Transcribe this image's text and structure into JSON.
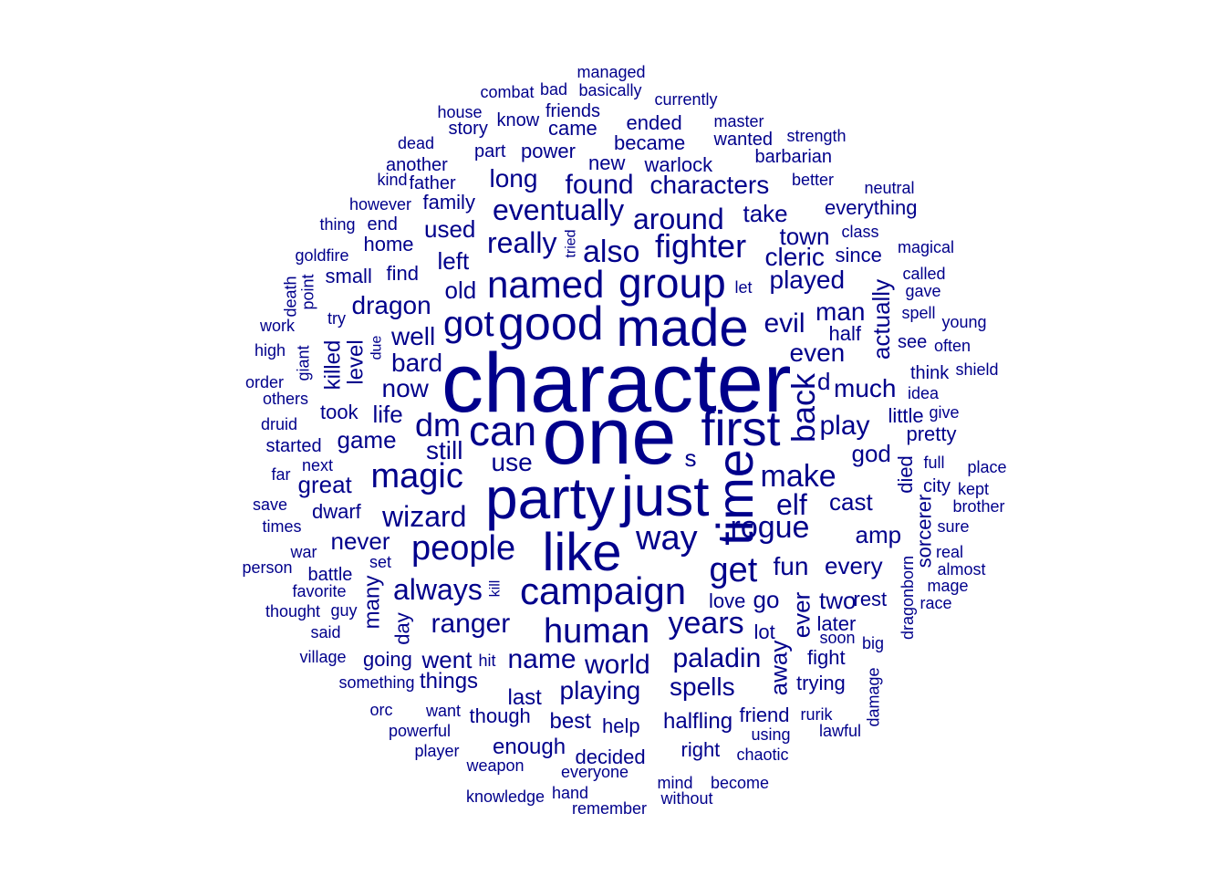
{
  "color": "#00008b",
  "words": [
    {
      "text": "character",
      "w": 92,
      "r": false
    },
    {
      "text": "one",
      "w": 88,
      "r": false
    },
    {
      "text": "party",
      "w": 64,
      "r": false
    },
    {
      "text": "just",
      "w": 62,
      "r": false
    },
    {
      "text": "made",
      "w": 58,
      "r": false
    },
    {
      "text": "like",
      "w": 58,
      "r": false
    },
    {
      "text": "time",
      "w": 56,
      "r": true
    },
    {
      "text": "first",
      "w": 54,
      "r": false
    },
    {
      "text": "good",
      "w": 52,
      "r": false
    },
    {
      "text": "can",
      "w": 46,
      "r": false
    },
    {
      "text": "group",
      "w": 46,
      "r": false
    },
    {
      "text": "named",
      "w": 42,
      "r": false
    },
    {
      "text": "campaign",
      "w": 42,
      "r": false
    },
    {
      "text": "got",
      "w": 40,
      "r": false
    },
    {
      "text": "magic",
      "w": 38,
      "r": false
    },
    {
      "text": "human",
      "w": 38,
      "r": false
    },
    {
      "text": "people",
      "w": 38,
      "r": false
    },
    {
      "text": "get",
      "w": 38,
      "r": false
    },
    {
      "text": "way",
      "w": 38,
      "r": false
    },
    {
      "text": "fighter",
      "w": 36,
      "r": false
    },
    {
      "text": "dm",
      "w": 36,
      "r": false
    },
    {
      "text": "back",
      "w": 36,
      "r": true
    },
    {
      "text": "make",
      "w": 34,
      "r": false
    },
    {
      "text": "rogue",
      "w": 34,
      "r": false
    },
    {
      "text": "also",
      "w": 34,
      "r": false
    },
    {
      "text": "years",
      "w": 34,
      "r": false
    },
    {
      "text": "eventually",
      "w": 32,
      "r": false
    },
    {
      "text": "really",
      "w": 32,
      "r": false
    },
    {
      "text": "around",
      "w": 32,
      "r": false
    },
    {
      "text": "wizard",
      "w": 32,
      "r": false
    },
    {
      "text": "always",
      "w": 32,
      "r": false
    },
    {
      "text": "elf",
      "w": 32,
      "r": false
    },
    {
      "text": "paladin",
      "w": 30,
      "r": false
    },
    {
      "text": "name",
      "w": 30,
      "r": false
    },
    {
      "text": "world",
      "w": 30,
      "r": false
    },
    {
      "text": "evil",
      "w": 30,
      "r": false
    },
    {
      "text": "ranger",
      "w": 30,
      "r": false
    },
    {
      "text": "play",
      "w": 30,
      "r": false
    },
    {
      "text": "found",
      "w": 30,
      "r": false
    },
    {
      "text": "characters",
      "w": 28,
      "r": false
    },
    {
      "text": "long",
      "w": 28,
      "r": false
    },
    {
      "text": "played",
      "w": 28,
      "r": false
    },
    {
      "text": "cleric",
      "w": 28,
      "r": false
    },
    {
      "text": "man",
      "w": 28,
      "r": false
    },
    {
      "text": "even",
      "w": 28,
      "r": false
    },
    {
      "text": "well",
      "w": 28,
      "r": false
    },
    {
      "text": "bard",
      "w": 28,
      "r": false
    },
    {
      "text": "now",
      "w": 28,
      "r": false
    },
    {
      "text": "dragon",
      "w": 28,
      "r": false
    },
    {
      "text": "much",
      "w": 28,
      "r": false
    },
    {
      "text": "spells",
      "w": 28,
      "r": false
    },
    {
      "text": "playing",
      "w": 28,
      "r": false
    },
    {
      "text": "fun",
      "w": 28,
      "r": false
    },
    {
      "text": "use",
      "w": 28,
      "r": false
    },
    {
      "text": "still",
      "w": 28,
      "r": false
    },
    {
      "text": "actually",
      "w": 26,
      "r": true
    },
    {
      "text": "take",
      "w": 26,
      "r": false
    },
    {
      "text": "town",
      "w": 26,
      "r": false
    },
    {
      "text": "game",
      "w": 26,
      "r": false
    },
    {
      "text": "life",
      "w": 26,
      "r": false
    },
    {
      "text": "left",
      "w": 26,
      "r": false
    },
    {
      "text": "old",
      "w": 26,
      "r": false
    },
    {
      "text": "cast",
      "w": 26,
      "r": false
    },
    {
      "text": "every",
      "w": 26,
      "r": false
    },
    {
      "text": "amp",
      "w": 26,
      "r": false
    },
    {
      "text": "god",
      "w": 26,
      "r": false
    },
    {
      "text": "went",
      "w": 26,
      "r": false
    },
    {
      "text": "ever",
      "w": 26,
      "r": true
    },
    {
      "text": "two",
      "w": 26,
      "r": false
    },
    {
      "text": "away",
      "w": 26,
      "r": true
    },
    {
      "text": "never",
      "w": 26,
      "r": false
    },
    {
      "text": "great",
      "w": 26,
      "r": false
    },
    {
      "text": "used",
      "w": 26,
      "r": false
    },
    {
      "text": "d",
      "w": 26,
      "r": false
    },
    {
      "text": "s",
      "w": 26,
      "r": false
    },
    {
      "text": "go",
      "w": 26,
      "r": false
    },
    {
      "text": "many",
      "w": 24,
      "r": true
    },
    {
      "text": "things",
      "w": 24,
      "r": false
    },
    {
      "text": "enough",
      "w": 24,
      "r": false
    },
    {
      "text": "best",
      "w": 24,
      "r": false
    },
    {
      "text": "last",
      "w": 24,
      "r": false
    },
    {
      "text": "halfling",
      "w": 24,
      "r": false
    },
    {
      "text": "killed",
      "w": 24,
      "r": true
    },
    {
      "text": "level",
      "w": 24,
      "r": true
    },
    {
      "text": "became",
      "w": 22,
      "r": false
    },
    {
      "text": "new",
      "w": 22,
      "r": false
    },
    {
      "text": "warlock",
      "w": 22,
      "r": false
    },
    {
      "text": "power",
      "w": 22,
      "r": false
    },
    {
      "text": "came",
      "w": 22,
      "r": false
    },
    {
      "text": "ended",
      "w": 22,
      "r": false
    },
    {
      "text": "family",
      "w": 22,
      "r": false
    },
    {
      "text": "find",
      "w": 22,
      "r": false
    },
    {
      "text": "took",
      "w": 22,
      "r": false
    },
    {
      "text": "help",
      "w": 22,
      "r": false
    },
    {
      "text": "friend",
      "w": 22,
      "r": false
    },
    {
      "text": "though",
      "w": 22,
      "r": false
    },
    {
      "text": "decided",
      "w": 22,
      "r": false
    },
    {
      "text": "right",
      "w": 22,
      "r": false
    },
    {
      "text": "fight",
      "w": 22,
      "r": false
    },
    {
      "text": "trying",
      "w": 22,
      "r": false
    },
    {
      "text": "later",
      "w": 22,
      "r": false
    },
    {
      "text": "rest",
      "w": 22,
      "r": false
    },
    {
      "text": "lot",
      "w": 22,
      "r": false
    },
    {
      "text": "love",
      "w": 22,
      "r": false
    },
    {
      "text": "half",
      "w": 22,
      "r": false
    },
    {
      "text": "since",
      "w": 22,
      "r": false
    },
    {
      "text": "everything",
      "w": 22,
      "r": false
    },
    {
      "text": "little",
      "w": 22,
      "r": false
    },
    {
      "text": "pretty",
      "w": 22,
      "r": false
    },
    {
      "text": "died",
      "w": 22,
      "r": true
    },
    {
      "text": "sorcerer",
      "w": 22,
      "r": true
    },
    {
      "text": "dwarf",
      "w": 22,
      "r": false
    },
    {
      "text": "home",
      "w": 22,
      "r": false
    },
    {
      "text": "small",
      "w": 22,
      "r": false
    },
    {
      "text": "going",
      "w": 22,
      "r": false
    },
    {
      "text": "day",
      "w": 22,
      "r": true
    },
    {
      "text": "think",
      "w": 20,
      "r": false
    },
    {
      "text": "see",
      "w": 20,
      "r": false
    },
    {
      "text": "city",
      "w": 20,
      "r": false
    },
    {
      "text": "barbarian",
      "w": 20,
      "r": false
    },
    {
      "text": "wanted",
      "w": 20,
      "r": false
    },
    {
      "text": "part",
      "w": 20,
      "r": false
    },
    {
      "text": "father",
      "w": 20,
      "r": false
    },
    {
      "text": "another",
      "w": 20,
      "r": false
    },
    {
      "text": "end",
      "w": 20,
      "r": false
    },
    {
      "text": "started",
      "w": 20,
      "r": false
    },
    {
      "text": "battle",
      "w": 20,
      "r": false
    },
    {
      "text": "friends",
      "w": 20,
      "r": false
    },
    {
      "text": "know",
      "w": 20,
      "r": false
    },
    {
      "text": "story",
      "w": 20,
      "r": false
    },
    {
      "text": "master",
      "w": 18,
      "r": false
    },
    {
      "text": "currently",
      "w": 18,
      "r": false
    },
    {
      "text": "basically",
      "w": 18,
      "r": false
    },
    {
      "text": "combat",
      "w": 18,
      "r": false
    },
    {
      "text": "better",
      "w": 18,
      "r": false
    },
    {
      "text": "class",
      "w": 18,
      "r": false
    },
    {
      "text": "let",
      "w": 18,
      "r": false
    },
    {
      "text": "point",
      "w": 18,
      "r": true
    },
    {
      "text": "giant",
      "w": 18,
      "r": true
    },
    {
      "text": "druid",
      "w": 18,
      "r": false
    },
    {
      "text": "next",
      "w": 18,
      "r": false
    },
    {
      "text": "far",
      "w": 18,
      "r": false
    },
    {
      "text": "save",
      "w": 18,
      "r": false
    },
    {
      "text": "times",
      "w": 18,
      "r": false
    },
    {
      "text": "war",
      "w": 18,
      "r": false
    },
    {
      "text": "favorite",
      "w": 18,
      "r": false
    },
    {
      "text": "guy",
      "w": 18,
      "r": false
    },
    {
      "text": "said",
      "w": 18,
      "r": false
    },
    {
      "text": "village",
      "w": 18,
      "r": false
    },
    {
      "text": "something",
      "w": 18,
      "r": false
    },
    {
      "text": "hit",
      "w": 18,
      "r": false
    },
    {
      "text": "want",
      "w": 18,
      "r": false
    },
    {
      "text": "powerful",
      "w": 18,
      "r": false
    },
    {
      "text": "player",
      "w": 18,
      "r": false
    },
    {
      "text": "weapon",
      "w": 18,
      "r": false
    },
    {
      "text": "everyone",
      "w": 18,
      "r": false
    },
    {
      "text": "hand",
      "w": 18,
      "r": false
    },
    {
      "text": "knowledge",
      "w": 18,
      "r": false
    },
    {
      "text": "remember",
      "w": 18,
      "r": false
    },
    {
      "text": "mind",
      "w": 18,
      "r": false
    },
    {
      "text": "without",
      "w": 18,
      "r": false
    },
    {
      "text": "become",
      "w": 18,
      "r": false
    },
    {
      "text": "using",
      "w": 18,
      "r": false
    },
    {
      "text": "chaotic",
      "w": 18,
      "r": false
    },
    {
      "text": "lawful",
      "w": 18,
      "r": false
    },
    {
      "text": "rurik",
      "w": 18,
      "r": false
    },
    {
      "text": "soon",
      "w": 18,
      "r": false
    },
    {
      "text": "big",
      "w": 18,
      "r": false
    },
    {
      "text": "damage",
      "w": 18,
      "r": true
    },
    {
      "text": "dragonborn",
      "w": 18,
      "r": true
    },
    {
      "text": "race",
      "w": 18,
      "r": false
    },
    {
      "text": "mage",
      "w": 18,
      "r": false
    },
    {
      "text": "almost",
      "w": 18,
      "r": false
    },
    {
      "text": "real",
      "w": 18,
      "r": false
    },
    {
      "text": "sure",
      "w": 18,
      "r": false
    },
    {
      "text": "brother",
      "w": 18,
      "r": false
    },
    {
      "text": "kept",
      "w": 18,
      "r": false
    },
    {
      "text": "place",
      "w": 18,
      "r": false
    },
    {
      "text": "full",
      "w": 18,
      "r": false
    },
    {
      "text": "give",
      "w": 18,
      "r": false
    },
    {
      "text": "idea",
      "w": 18,
      "r": false
    },
    {
      "text": "shield",
      "w": 18,
      "r": false
    },
    {
      "text": "often",
      "w": 18,
      "r": false
    },
    {
      "text": "young",
      "w": 18,
      "r": false
    },
    {
      "text": "spell",
      "w": 18,
      "r": false
    },
    {
      "text": "gave",
      "w": 18,
      "r": false
    },
    {
      "text": "called",
      "w": 18,
      "r": false
    },
    {
      "text": "magical",
      "w": 18,
      "r": false
    },
    {
      "text": "neutral",
      "w": 18,
      "r": false
    },
    {
      "text": "strength",
      "w": 18,
      "r": false
    },
    {
      "text": "managed",
      "w": 18,
      "r": false
    },
    {
      "text": "bad",
      "w": 18,
      "r": false
    },
    {
      "text": "house",
      "w": 18,
      "r": false
    },
    {
      "text": "dead",
      "w": 18,
      "r": false
    },
    {
      "text": "kind",
      "w": 18,
      "r": false
    },
    {
      "text": "however",
      "w": 18,
      "r": false
    },
    {
      "text": "thing",
      "w": 18,
      "r": false
    },
    {
      "text": "goldfire",
      "w": 18,
      "r": false
    },
    {
      "text": "death",
      "w": 18,
      "r": true
    },
    {
      "text": "work",
      "w": 18,
      "r": false
    },
    {
      "text": "try",
      "w": 18,
      "r": false
    },
    {
      "text": "high",
      "w": 18,
      "r": false
    },
    {
      "text": "due",
      "w": 16,
      "r": true
    },
    {
      "text": "order",
      "w": 18,
      "r": false
    },
    {
      "text": "others",
      "w": 18,
      "r": false
    },
    {
      "text": "person",
      "w": 18,
      "r": false
    },
    {
      "text": "set",
      "w": 18,
      "r": false
    },
    {
      "text": "thought",
      "w": 18,
      "r": false
    },
    {
      "text": "orc",
      "w": 18,
      "r": false
    },
    {
      "text": "tried",
      "w": 16,
      "r": true
    },
    {
      "text": "kill",
      "w": 16,
      "r": true
    }
  ]
}
